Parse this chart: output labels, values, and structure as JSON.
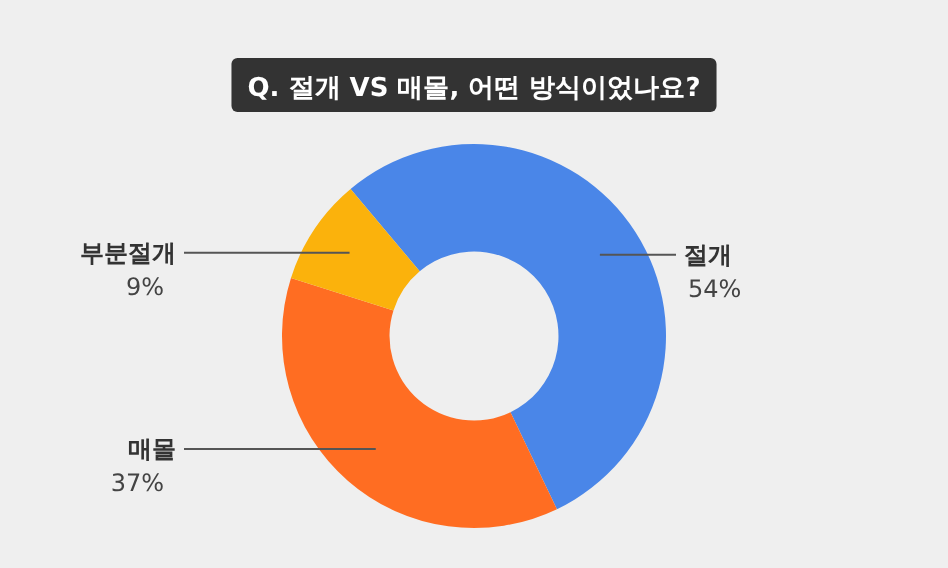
{
  "chart_data": {
    "type": "donut",
    "title": "Q. 절개 VS 매몰, 어떤 방식이었나요?",
    "categories": [
      "절개",
      "매몰",
      "부분절개"
    ],
    "values": [
      54,
      37,
      9
    ],
    "colors": [
      "#4a86e8",
      "#ff6d22",
      "#fbb20c"
    ],
    "value_labels": [
      "54%",
      "37%",
      "9%"
    ]
  }
}
